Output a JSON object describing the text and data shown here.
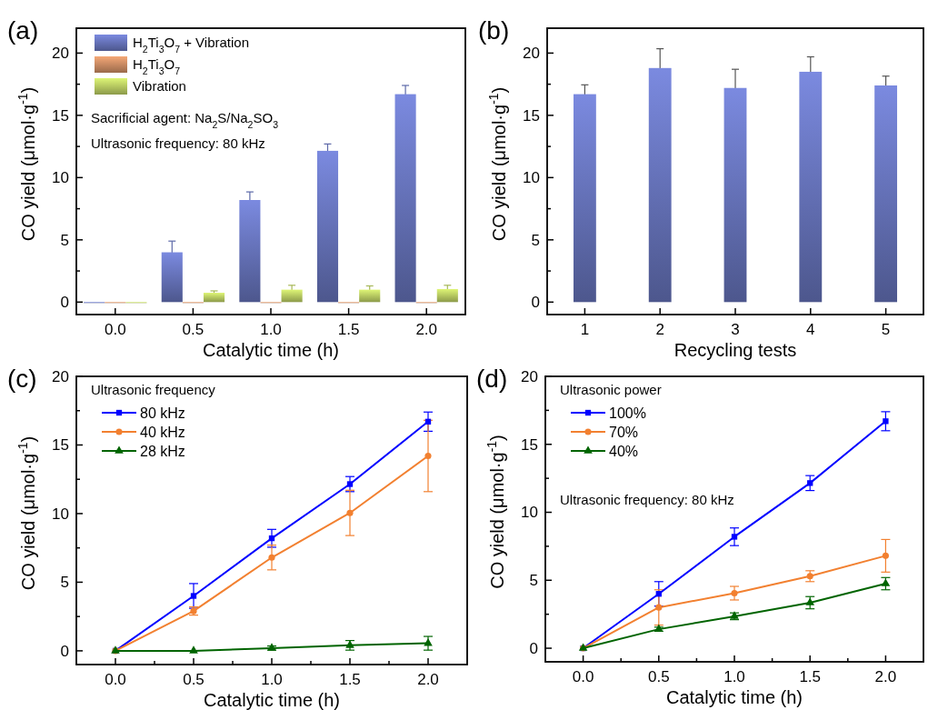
{
  "chart_data": [
    {
      "type": "bar",
      "title": "(a)",
      "xlabel": "Catalytic time (h)",
      "ylabel": "CO yield (μmol·g$^{-1}$)",
      "categories": [
        "0.0",
        "0.5",
        "1.0",
        "1.5",
        "2.0"
      ],
      "series": [
        {
          "name": "H$_{2}$Ti$_{3}$O$_{7}$ + Vibration",
          "color": "#7b8ae0",
          "values": [
            0,
            4.0,
            8.2,
            12.15,
            16.7
          ],
          "errors": [
            null,
            0.9,
            0.65,
            0.55,
            0.7
          ]
        },
        {
          "name": "H$_{2}$Ti$_{3}$O$_{7}$",
          "color": "#f5a877",
          "values": [
            0,
            0,
            0,
            0,
            0
          ]
        },
        {
          "name": "Vibration",
          "color": "#def576",
          "values": [
            0,
            0.75,
            1.0,
            1.0,
            1.05
          ],
          "errors": [
            null,
            0.15,
            0.35,
            0.3,
            0.3
          ]
        }
      ],
      "ylim": [
        -1,
        22
      ],
      "yticks": [
        0,
        {
          "value": 2.5,
          "label": null
        },
        5,
        {
          "value": 7.5,
          "label": null
        },
        10,
        {
          "value": 12.5,
          "label": null
        },
        15,
        {
          "value": 17.5,
          "label": null
        },
        20
      ],
      "legend": "top left",
      "annotations": [
        "Sacrificial agent: Na$_{2}$S/Na$_{2}$SO$_{3}$",
        "Ultrasonic frequency: 80 kHz"
      ]
    },
    {
      "type": "bar",
      "title": "(b)",
      "xlabel": "Recycling tests",
      "ylabel": "CO yield (μmol·g$^{-1}$)",
      "categories": [
        "1",
        "2",
        "3",
        "4",
        "5"
      ],
      "series": [
        {
          "color": "#7b8ae0",
          "values": [
            16.7,
            18.8,
            17.2,
            18.5,
            17.4
          ],
          "errors": [
            0.75,
            1.55,
            1.5,
            1.2,
            0.75
          ]
        }
      ],
      "ylim": [
        -1,
        22
      ],
      "yticks": [
        0,
        {
          "value": 2.5,
          "label": null
        },
        5,
        {
          "value": 7.5,
          "label": null
        },
        10,
        {
          "value": 12.5,
          "label": null
        },
        15,
        {
          "value": 17.5,
          "label": null
        },
        20
      ]
    },
    {
      "type": "line",
      "title": "(c)",
      "xlabel": "Catalytic time (h)",
      "ylabel": "CO yield (μmol·g$^{-1}$)",
      "x": [
        0,
        0.5,
        1.0,
        1.5,
        2.0
      ],
      "series": [
        {
          "name": "80 kHz",
          "color": "#0000ff",
          "marker": "square",
          "values": [
            0,
            4.0,
            8.2,
            12.15,
            16.7
          ],
          "errors": [
            null,
            0.9,
            0.65,
            0.55,
            0.7
          ]
        },
        {
          "name": "40 kHz",
          "color": "#f28030",
          "marker": "circle",
          "values": [
            0,
            2.9,
            6.8,
            10.05,
            14.2
          ],
          "errors": [
            null,
            0.3,
            0.9,
            1.65,
            2.6
          ]
        },
        {
          "name": "28 kHz",
          "color": "#006400",
          "marker": "triangle",
          "values": [
            0,
            0,
            0.2,
            0.4,
            0.55
          ],
          "errors": [
            null,
            null,
            0.15,
            0.35,
            0.5
          ]
        }
      ],
      "xlim": [
        -0.25,
        2.25
      ],
      "xticks": [
        {
          "value": 0,
          "label": "0.0"
        },
        {
          "value": 0.25,
          "label": null
        },
        {
          "value": 0.5,
          "label": "0.5"
        },
        {
          "value": 0.75,
          "label": null
        },
        {
          "value": 1,
          "label": "1.0"
        },
        {
          "value": 1.25,
          "label": null
        },
        {
          "value": 1.5,
          "label": "1.5"
        },
        {
          "value": 1.75,
          "label": null
        },
        {
          "value": 2,
          "label": "2.0"
        }
      ],
      "ylim": [
        -1,
        20
      ],
      "yticks": [
        0,
        {
          "value": 2.5,
          "label": null
        },
        5,
        {
          "value": 7.5,
          "label": null
        },
        10,
        {
          "value": 12.5,
          "label": null
        },
        15,
        {
          "value": 17.5,
          "label": null
        },
        20
      ],
      "legend": "top left",
      "legend_title": "Ultrasonic frequency"
    },
    {
      "type": "line",
      "title": "(d)",
      "xlabel": "Catalytic time (h)",
      "ylabel": "CO yield (μmol·g$^{-1}$)",
      "x": [
        0,
        0.5,
        1.0,
        1.5,
        2.0
      ],
      "series": [
        {
          "name": "100%",
          "color": "#0000ff",
          "marker": "square",
          "values": [
            0,
            4.0,
            8.2,
            12.15,
            16.7
          ],
          "errors": [
            null,
            0.9,
            0.65,
            0.55,
            0.7
          ]
        },
        {
          "name": "70%",
          "color": "#f28030",
          "marker": "circle",
          "values": [
            0,
            3.0,
            4.05,
            5.3,
            6.8
          ],
          "errors": [
            null,
            1.3,
            0.5,
            0.4,
            1.2
          ]
        },
        {
          "name": "40%",
          "color": "#006400",
          "marker": "triangle",
          "values": [
            0,
            1.4,
            2.35,
            3.35,
            4.75
          ],
          "errors": [
            null,
            0.15,
            0.25,
            0.45,
            0.45
          ]
        }
      ],
      "xlim": [
        -0.25,
        2.25
      ],
      "xticks": [
        {
          "value": 0,
          "label": "0.0"
        },
        {
          "value": 0.25,
          "label": null
        },
        {
          "value": 0.5,
          "label": "0.5"
        },
        {
          "value": 0.75,
          "label": null
        },
        {
          "value": 1,
          "label": "1.0"
        },
        {
          "value": 1.25,
          "label": null
        },
        {
          "value": 1.5,
          "label": "1.5"
        },
        {
          "value": 1.75,
          "label": null
        },
        {
          "value": 2,
          "label": "2.0"
        }
      ],
      "ylim": [
        -1,
        20
      ],
      "yticks": [
        0,
        {
          "value": 2.5,
          "label": null
        },
        5,
        {
          "value": 7.5,
          "label": null
        },
        10,
        {
          "value": 12.5,
          "label": null
        },
        15,
        {
          "value": 17.5,
          "label": null
        },
        20
      ],
      "legend": "top left",
      "legend_title": "Ultrasonic power",
      "annotations": [
        "Ultrasonic frequency: 80 kHz"
      ]
    }
  ]
}
